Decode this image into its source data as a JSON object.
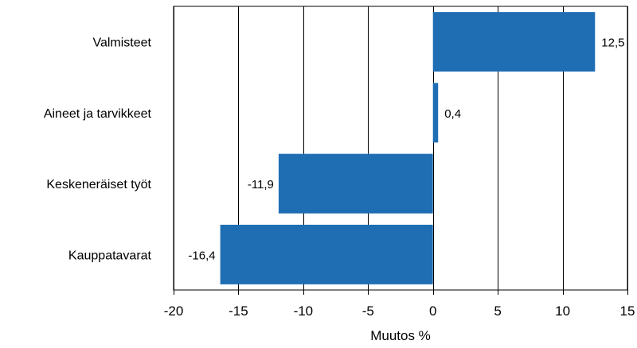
{
  "chart_data": {
    "type": "bar",
    "orientation": "horizontal",
    "categories": [
      "Valmisteet",
      "Aineet ja tarvikkeet",
      "Keskeneräiset työt",
      "Kauppatavarat"
    ],
    "values": [
      12.5,
      0.4,
      -11.9,
      -16.4
    ],
    "value_labels": [
      "12,5",
      "0,4",
      "-11,9",
      "-16,4"
    ],
    "xlabel": "Muutos %",
    "xlim": [
      -20,
      15
    ],
    "xticks": [
      -20,
      -15,
      -10,
      -5,
      0,
      5,
      10,
      15
    ],
    "grid": "vertical",
    "legend": "none",
    "colors": {
      "bar": "#1f6db3",
      "grid": "#000000",
      "background": "#ffffff"
    }
  }
}
